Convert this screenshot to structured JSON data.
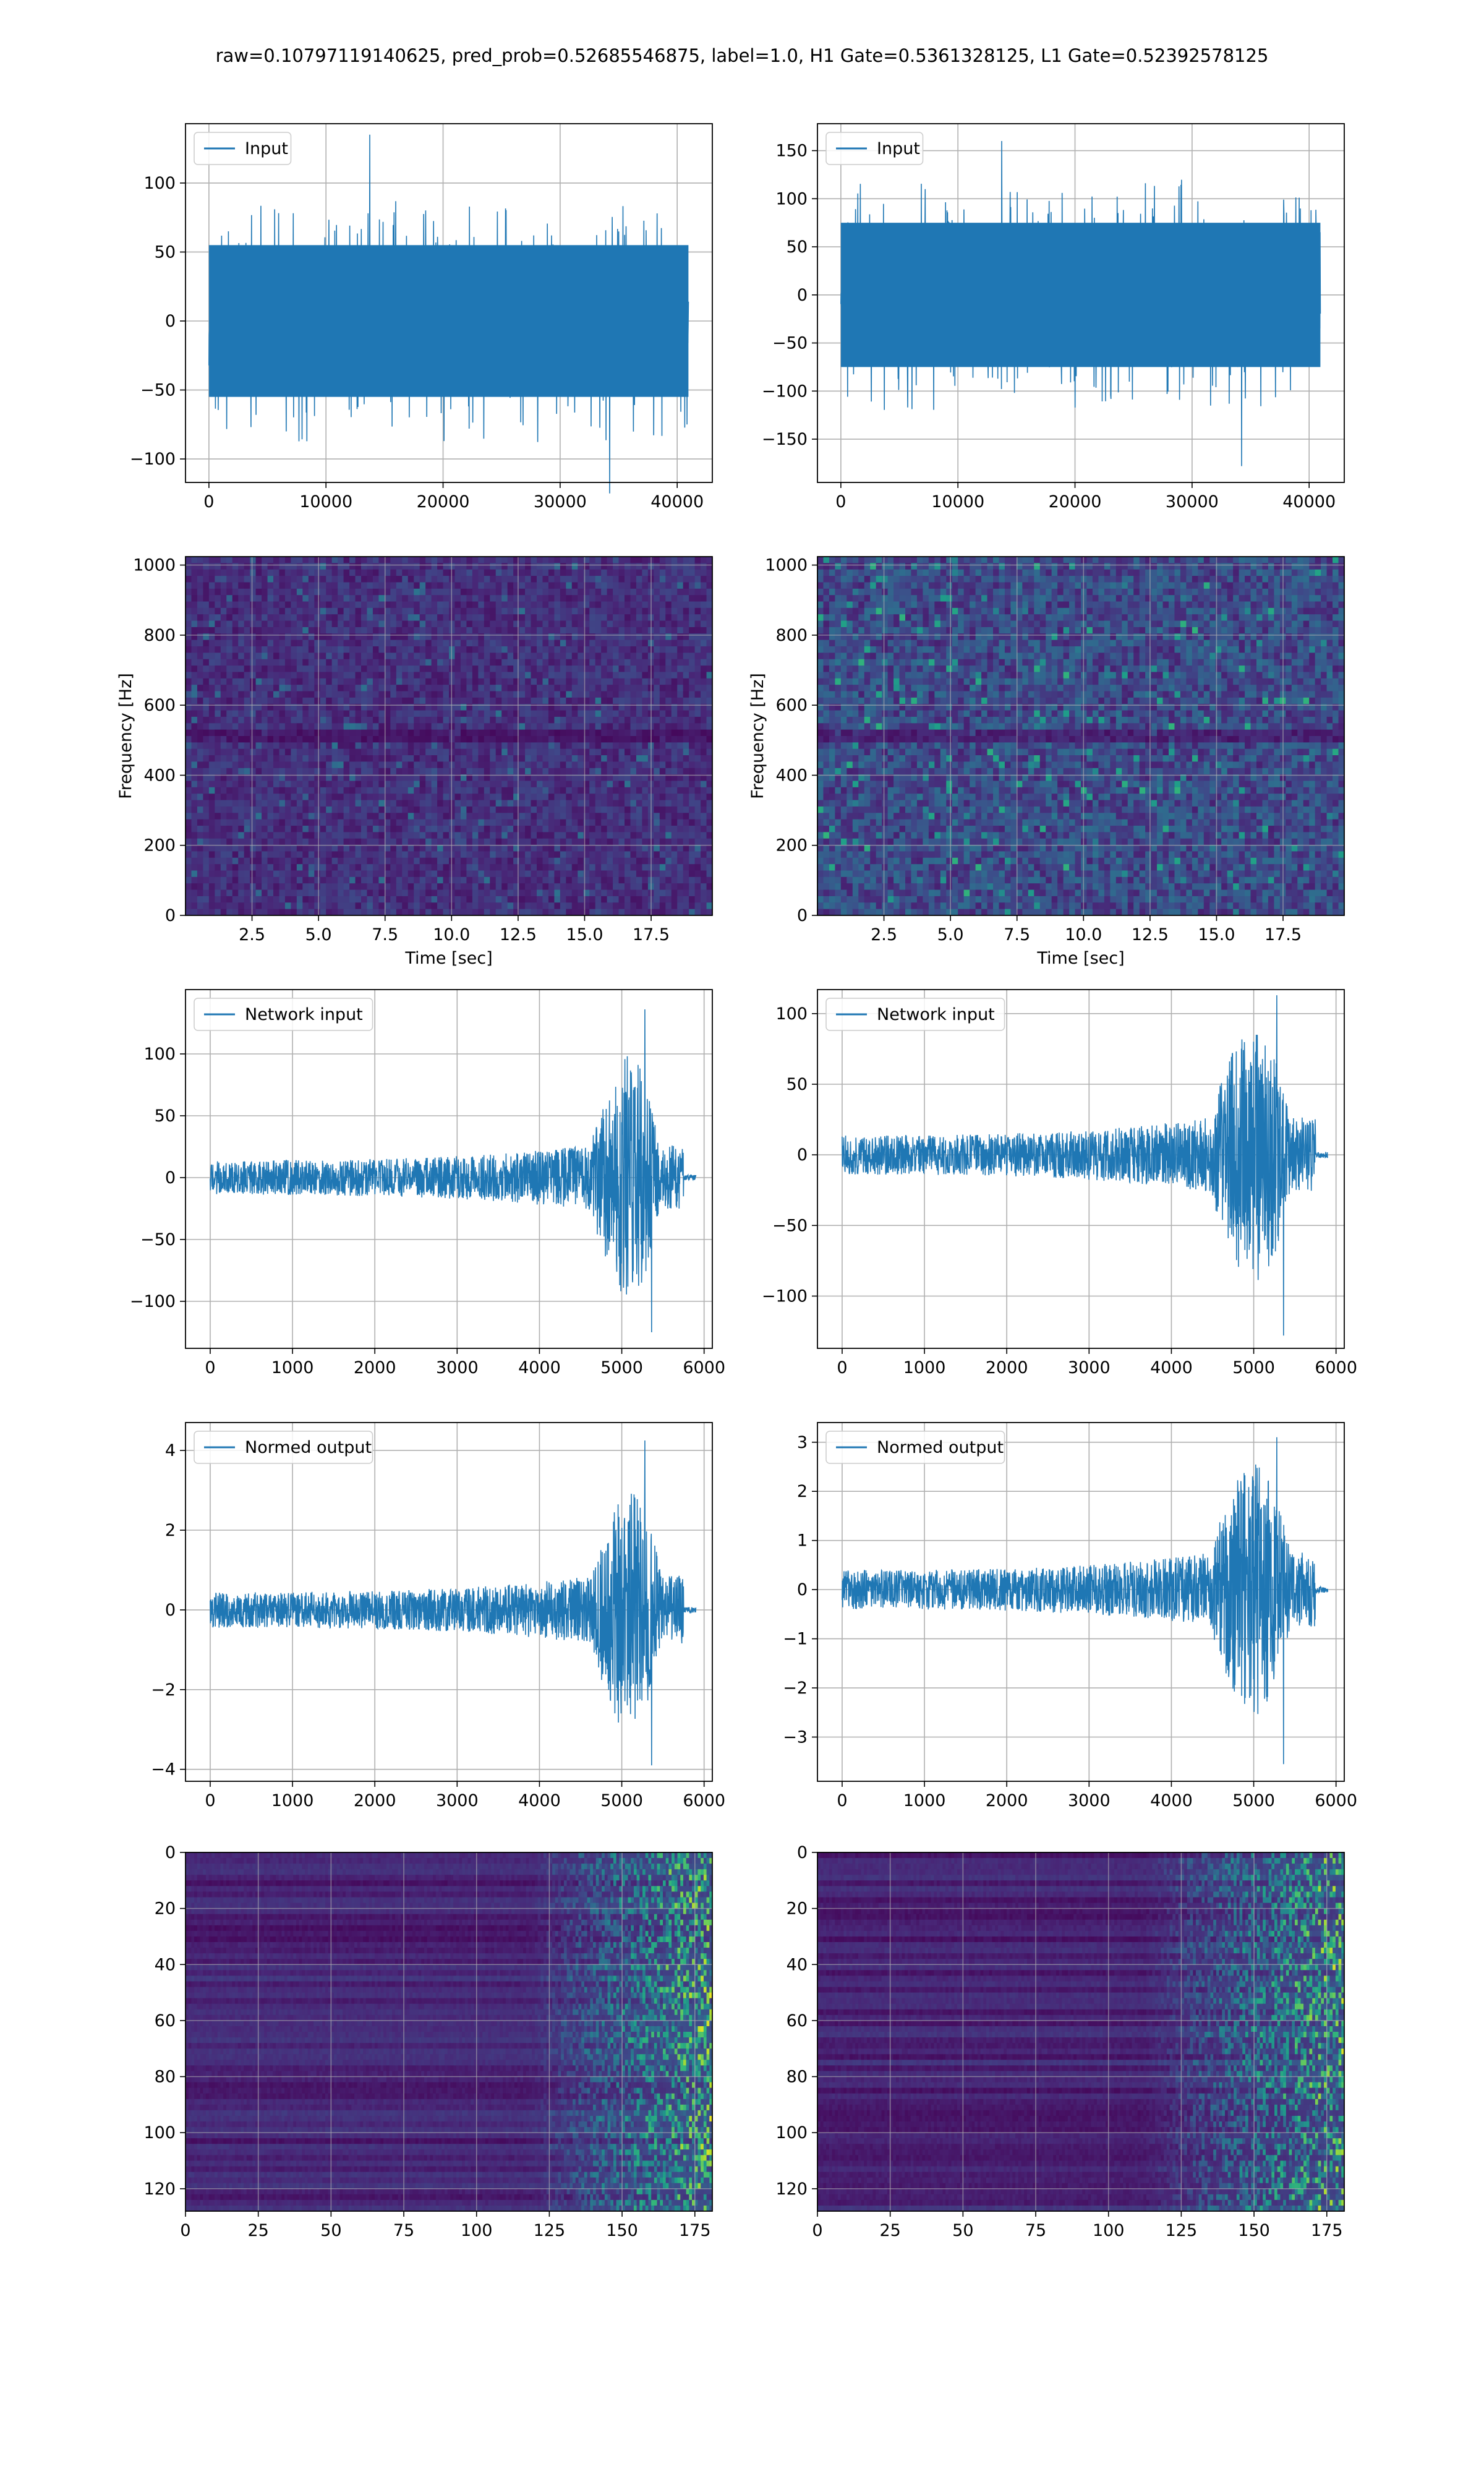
{
  "suptitle": "raw=0.10797119140625, pred_prob=0.52685546875, label=1.0, H1 Gate=0.5361328125, L1 Gate=0.52392578125",
  "colors": {
    "line": "#1f77b4",
    "grid": "#b0b0b0",
    "viridis_dark": "#440154"
  },
  "chart_data": [
    {
      "id": "h1-input",
      "type": "line",
      "series": [
        {
          "name": "Input"
        }
      ],
      "legend": "upper left",
      "xlim": [
        -2000,
        43000
      ],
      "ylim": [
        -117,
        143
      ],
      "xticks": [
        0,
        10000,
        20000,
        30000,
        40000
      ],
      "yticks": [
        -100,
        -50,
        0,
        50,
        100
      ],
      "xticklabels": [
        "0",
        "10000",
        "20000",
        "30000",
        "40000"
      ],
      "yticklabels": [
        "−100",
        "−50",
        "0",
        "50",
        "100"
      ],
      "grid": true,
      "envelope": {
        "x_range": [
          0,
          40960
        ],
        "amplitude": 55,
        "peak_max": 135,
        "peak_min": -125
      }
    },
    {
      "id": "l1-input",
      "type": "line",
      "series": [
        {
          "name": "Input"
        }
      ],
      "legend": "upper left",
      "xlim": [
        -2000,
        43000
      ],
      "ylim": [
        -195,
        178
      ],
      "xticks": [
        0,
        10000,
        20000,
        30000,
        40000
      ],
      "yticks": [
        -150,
        -100,
        -50,
        0,
        50,
        100,
        150
      ],
      "xticklabels": [
        "0",
        "10000",
        "20000",
        "30000",
        "40000"
      ],
      "yticklabels": [
        "−150",
        "−100",
        "−50",
        "0",
        "50",
        "100",
        "150"
      ],
      "grid": true,
      "envelope": {
        "x_range": [
          0,
          40960
        ],
        "amplitude": 75,
        "peak_max": 160,
        "peak_min": -178
      }
    },
    {
      "id": "h1-spectrogram",
      "type": "heatmap",
      "colormap": "viridis",
      "xlim": [
        0,
        19.8
      ],
      "ylim": [
        0,
        1024
      ],
      "xticks": [
        2.5,
        5.0,
        7.5,
        10.0,
        12.5,
        15.0,
        17.5
      ],
      "yticks": [
        0,
        200,
        400,
        600,
        800,
        1000
      ],
      "xticklabels": [
        "2.5",
        "5.0",
        "7.5",
        "10.0",
        "12.5",
        "15.0",
        "17.5"
      ],
      "yticklabels": [
        "0",
        "200",
        "400",
        "600",
        "800",
        "1000"
      ],
      "xlabel": "Time [sec]",
      "ylabel": "Frequency [Hz]",
      "grid": true,
      "intensity": 0.18
    },
    {
      "id": "l1-spectrogram",
      "type": "heatmap",
      "colormap": "viridis",
      "xlim": [
        0,
        19.8
      ],
      "ylim": [
        0,
        1024
      ],
      "xticks": [
        2.5,
        5.0,
        7.5,
        10.0,
        12.5,
        15.0,
        17.5
      ],
      "yticks": [
        0,
        200,
        400,
        600,
        800,
        1000
      ],
      "xticklabels": [
        "2.5",
        "5.0",
        "7.5",
        "10.0",
        "12.5",
        "15.0",
        "17.5"
      ],
      "yticklabels": [
        "0",
        "200",
        "400",
        "600",
        "800",
        "1000"
      ],
      "xlabel": "Time [sec]",
      "ylabel": "Frequency [Hz]",
      "grid": true,
      "intensity": 0.3
    },
    {
      "id": "h1-network-input",
      "type": "line",
      "series": [
        {
          "name": "Network input"
        }
      ],
      "legend": "upper left",
      "xlim": [
        -300,
        6100
      ],
      "ylim": [
        -138,
        152
      ],
      "xticks": [
        0,
        1000,
        2000,
        3000,
        4000,
        5000,
        6000
      ],
      "yticks": [
        -100,
        -50,
        0,
        50,
        100
      ],
      "xticklabels": [
        "0",
        "1000",
        "2000",
        "3000",
        "4000",
        "5000",
        "6000"
      ],
      "yticklabels": [
        "−100",
        "−50",
        "0",
        "50",
        "100"
      ],
      "grid": true,
      "chirp": {
        "n": 5900,
        "noise_amp": 14,
        "burst_start": 4650,
        "burst_end": 5750,
        "burst_amp": 100,
        "peak_max": 136,
        "peak_min": -125
      }
    },
    {
      "id": "l1-network-input",
      "type": "line",
      "series": [
        {
          "name": "Network input"
        }
      ],
      "legend": "upper left",
      "xlim": [
        -300,
        6100
      ],
      "ylim": [
        -137,
        117
      ],
      "xticks": [
        0,
        1000,
        2000,
        3000,
        4000,
        5000,
        6000
      ],
      "yticks": [
        -100,
        -50,
        0,
        50,
        100
      ],
      "xticklabels": [
        "0",
        "1000",
        "2000",
        "3000",
        "4000",
        "5000",
        "6000"
      ],
      "yticklabels": [
        "−100",
        "−50",
        "0",
        "50",
        "100"
      ],
      "grid": true,
      "chirp": {
        "n": 5900,
        "noise_amp": 14,
        "burst_start": 4500,
        "burst_end": 5750,
        "burst_amp": 92,
        "peak_max": 113,
        "peak_min": -128
      }
    },
    {
      "id": "h1-normed-output",
      "type": "line",
      "series": [
        {
          "name": "Normed output"
        }
      ],
      "legend": "upper left",
      "xlim": [
        -300,
        6100
      ],
      "ylim": [
        -4.3,
        4.7
      ],
      "xticks": [
        0,
        1000,
        2000,
        3000,
        4000,
        5000,
        6000
      ],
      "yticks": [
        -4,
        -2,
        0,
        2,
        4
      ],
      "xticklabels": [
        "0",
        "1000",
        "2000",
        "3000",
        "4000",
        "5000",
        "6000"
      ],
      "yticklabels": [
        "−4",
        "−2",
        "0",
        "2",
        "4"
      ],
      "grid": true,
      "chirp": {
        "n": 5900,
        "noise_amp": 0.45,
        "burst_start": 4650,
        "burst_end": 5750,
        "burst_amp": 3.1,
        "peak_max": 4.25,
        "peak_min": -3.9
      }
    },
    {
      "id": "l1-normed-output",
      "type": "line",
      "series": [
        {
          "name": "Normed output"
        }
      ],
      "legend": "upper left",
      "xlim": [
        -300,
        6100
      ],
      "ylim": [
        -3.9,
        3.4
      ],
      "xticks": [
        0,
        1000,
        2000,
        3000,
        4000,
        5000,
        6000
      ],
      "yticks": [
        -3,
        -2,
        -1,
        0,
        1,
        2,
        3
      ],
      "xticklabels": [
        "0",
        "1000",
        "2000",
        "3000",
        "4000",
        "5000",
        "6000"
      ],
      "yticklabels": [
        "−3",
        "−2",
        "−1",
        "0",
        "1",
        "2",
        "3"
      ],
      "grid": true,
      "chirp": {
        "n": 5900,
        "noise_amp": 0.4,
        "burst_start": 4500,
        "burst_end": 5750,
        "burst_amp": 2.5,
        "peak_max": 3.1,
        "peak_min": -3.55
      }
    },
    {
      "id": "h1-scalogram",
      "type": "heatmap",
      "colormap": "viridis",
      "origin": "upper",
      "xlim": [
        0,
        181
      ],
      "ylim": [
        128,
        0
      ],
      "xticks": [
        0,
        25,
        50,
        75,
        100,
        125,
        150,
        175
      ],
      "yticks": [
        0,
        20,
        40,
        60,
        80,
        100,
        120
      ],
      "xticklabels": [
        "0",
        "25",
        "50",
        "75",
        "100",
        "125",
        "150",
        "175"
      ],
      "yticklabels": [
        "0",
        "20",
        "40",
        "60",
        "80",
        "100",
        "120"
      ],
      "grid": true,
      "onset": 118
    },
    {
      "id": "l1-scalogram",
      "type": "heatmap",
      "colormap": "viridis",
      "origin": "upper",
      "xlim": [
        0,
        181
      ],
      "ylim": [
        128,
        0
      ],
      "xticks": [
        0,
        25,
        50,
        75,
        100,
        125,
        150,
        175
      ],
      "yticks": [
        0,
        20,
        40,
        60,
        80,
        100,
        120
      ],
      "xticklabels": [
        "0",
        "25",
        "50",
        "75",
        "100",
        "125",
        "150",
        "175"
      ],
      "yticklabels": [
        "0",
        "20",
        "40",
        "60",
        "80",
        "100",
        "120"
      ],
      "grid": true,
      "onset": 112
    }
  ]
}
